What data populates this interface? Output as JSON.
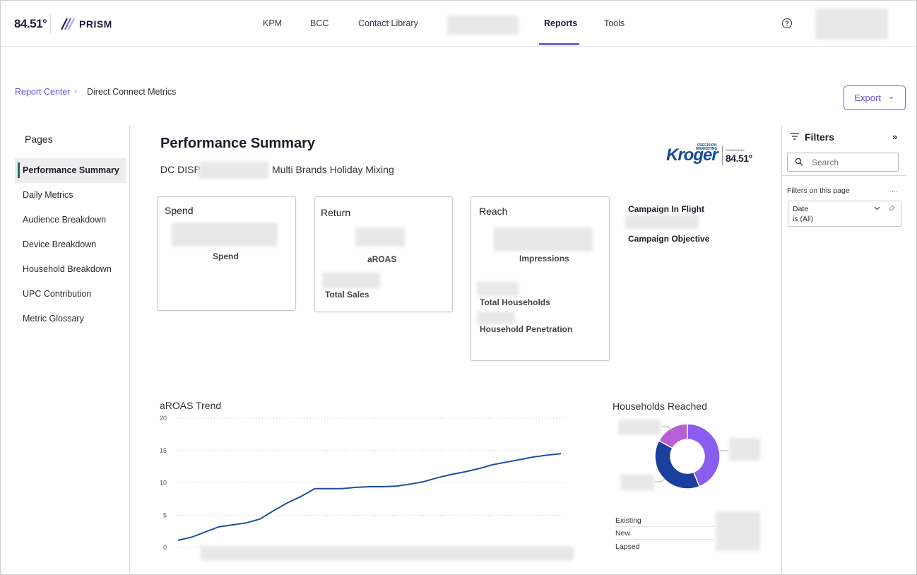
{
  "app": {
    "brand_8451": "84.51°",
    "product": "PRISM"
  },
  "nav": {
    "items": [
      "KPM",
      "BCC",
      "Contact Library",
      "Reports",
      "Tools"
    ],
    "active": "Reports",
    "help_glyph": "?"
  },
  "breadcrumb": {
    "parent": "Report Center",
    "separator": "›",
    "current": "Direct Connect Metrics"
  },
  "export_button": {
    "label": "Export",
    "chevron": "⌄"
  },
  "pages": {
    "title": "Pages",
    "items": [
      "Performance Summary",
      "Daily Metrics",
      "Audience Breakdown",
      "Device Breakdown",
      "Household Breakdown",
      "UPC Contribution",
      "Metric Glossary"
    ],
    "active": "Performance Summary"
  },
  "report": {
    "title": "Performance Summary",
    "subtitle_prefix": "DC DISP",
    "subtitle_suffix": "Multi Brands Holiday Mixing",
    "kroger_logo": {
      "word": "Kroger",
      "tag1": "PRECISION",
      "tag2": "MARKETING",
      "powered": "POWERED BY",
      "brand": "84.51°"
    }
  },
  "cards": {
    "spend": {
      "title": "Spend",
      "labels": [
        "Spend"
      ]
    },
    "return": {
      "title": "Return",
      "labels": [
        "aROAS",
        "Total Sales"
      ]
    },
    "reach": {
      "title": "Reach",
      "labels": [
        "Impressions",
        "Total Households",
        "Household Penetration"
      ]
    }
  },
  "campaign": {
    "in_flight_label": "Campaign In Flight",
    "objective_label": "Campaign Objective"
  },
  "aroas_trend": {
    "title": "aROAS Trend",
    "y_ticks": [
      "20",
      "15",
      "10",
      "5",
      "0"
    ]
  },
  "households_reached": {
    "title": "Households Reached",
    "legend": [
      "Existing",
      "New",
      "Lapsed"
    ]
  },
  "filters": {
    "title": "Filters",
    "collapse_glyph": "»",
    "search_placeholder": "Search",
    "on_this_page": "Filters on this page",
    "more_glyph": "...",
    "date_filter": {
      "name": "Date",
      "value": "is (All)"
    }
  },
  "colors": {
    "accent": "#7a5ce6",
    "active_page_marker": "#1e6e5a",
    "line_series": "#1f4fa0",
    "donut_purple": "#8b5cf0",
    "donut_navy": "#1a3f9e",
    "donut_magenta": "#b85ed6",
    "kroger_blue": "#134b9b"
  },
  "chart_data": [
    {
      "type": "line",
      "title": "aROAS Trend",
      "xlabel": "",
      "ylabel": "",
      "ylim": [
        0,
        20
      ],
      "grid": true,
      "x_labels_visible": false,
      "series": [
        {
          "values": [
            1.1,
            1.6,
            2.4,
            3.2,
            3.5,
            3.8,
            4.4,
            5.7,
            6.9,
            7.9,
            9.1,
            9.1,
            9.1,
            9.3,
            9.4,
            9.4,
            9.5,
            9.8,
            10.2,
            10.8,
            11.3,
            11.7,
            12.2,
            12.8,
            13.2,
            13.6,
            14.0,
            14.3,
            14.5
          ]
        }
      ]
    },
    {
      "type": "pie",
      "title": "Households Reached",
      "donut": true,
      "categories": [
        "Existing",
        "New",
        "Lapsed"
      ],
      "values": [
        44,
        39,
        17
      ],
      "colors": [
        "#8b5cf0",
        "#1a3f9e",
        "#b85ed6"
      ]
    }
  ]
}
